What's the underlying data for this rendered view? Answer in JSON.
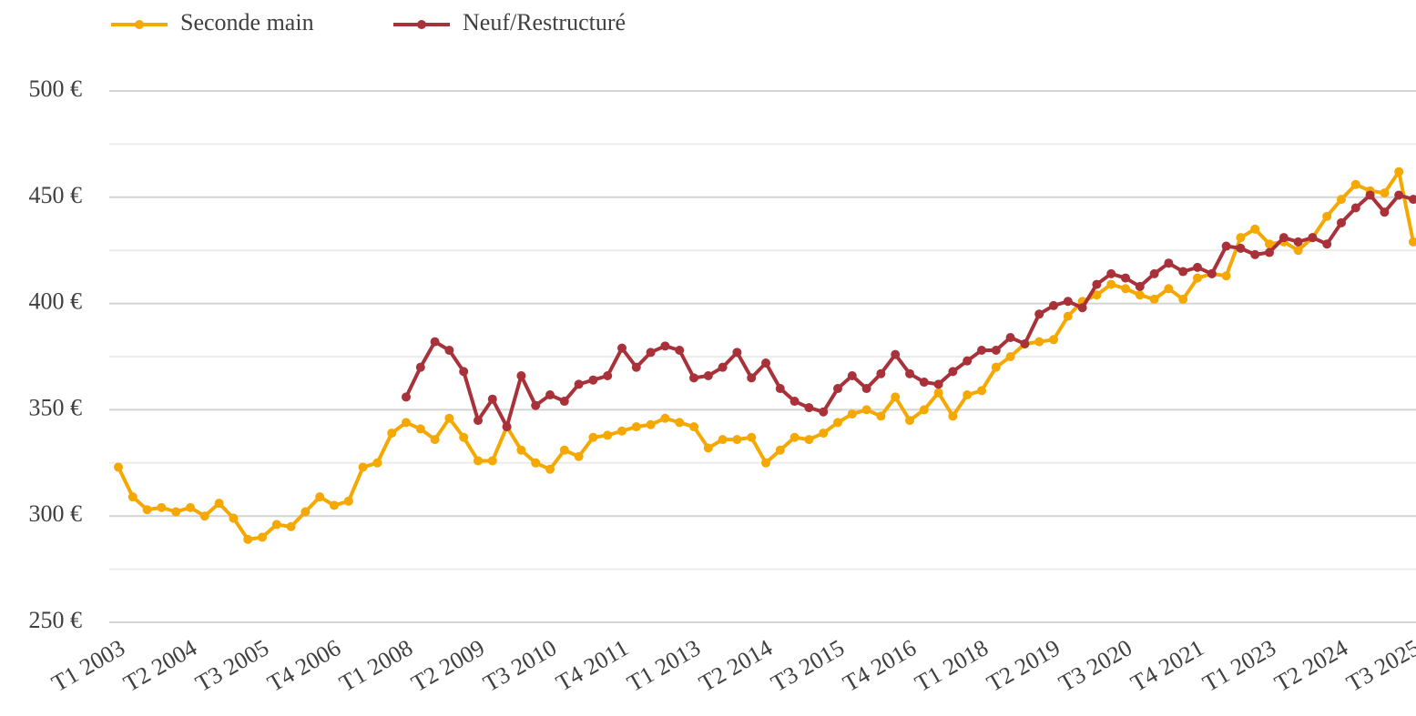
{
  "chart_data": {
    "type": "line",
    "categories": [
      "T1 2003",
      null,
      null,
      null,
      null,
      "T2 2004",
      null,
      null,
      null,
      null,
      "T3 2005",
      null,
      null,
      null,
      null,
      "T4 2006",
      null,
      null,
      null,
      null,
      "T1 2008",
      null,
      null,
      null,
      null,
      "T2 2009",
      null,
      null,
      null,
      null,
      "T3 2010",
      null,
      null,
      null,
      null,
      "T4 2011",
      null,
      null,
      null,
      null,
      "T1 2013",
      null,
      null,
      null,
      null,
      "T2 2014",
      null,
      null,
      null,
      null,
      "T3 2015",
      null,
      null,
      null,
      null,
      "T4 2016",
      null,
      null,
      null,
      null,
      "T1 2018",
      null,
      null,
      null,
      null,
      "T2 2019",
      null,
      null,
      null,
      null,
      "T3 2020",
      null,
      null,
      null,
      null,
      "T4 2021",
      null,
      null,
      null,
      null,
      "T1 2023",
      null,
      null,
      null,
      null,
      "T2 2024",
      null,
      null,
      null,
      null,
      "T3 2025"
    ],
    "series": [
      {
        "name": "Seconde main",
        "color": "#f5a800",
        "values": [
          323,
          309,
          303,
          304,
          302,
          304,
          300,
          306,
          299,
          289,
          290,
          296,
          295,
          302,
          309,
          305,
          307,
          323,
          325,
          339,
          344,
          341,
          336,
          346,
          337,
          326,
          326,
          342,
          331,
          325,
          322,
          331,
          328,
          337,
          338,
          340,
          342,
          343,
          346,
          344,
          342,
          332,
          336,
          336,
          337,
          325,
          331,
          337,
          336,
          339,
          344,
          348,
          350,
          347,
          356,
          345,
          350,
          358,
          347,
          357,
          359,
          370,
          375,
          381,
          382,
          383,
          394,
          401,
          404,
          409,
          407,
          404,
          402,
          407,
          402,
          412,
          414,
          413,
          431,
          435,
          428,
          429,
          425,
          431,
          441,
          449,
          456,
          453,
          452,
          462,
          429
        ]
      },
      {
        "name": "Neuf/Restructuré",
        "color": "#a8313a",
        "values": [
          null,
          null,
          null,
          null,
          null,
          null,
          null,
          null,
          null,
          null,
          null,
          null,
          null,
          null,
          null,
          null,
          null,
          null,
          null,
          null,
          356,
          370,
          382,
          378,
          368,
          345,
          355,
          342,
          366,
          352,
          357,
          354,
          362,
          364,
          366,
          379,
          370,
          377,
          380,
          378,
          365,
          366,
          370,
          377,
          365,
          372,
          360,
          354,
          351,
          349,
          360,
          366,
          360,
          367,
          376,
          367,
          363,
          362,
          368,
          373,
          378,
          378,
          384,
          381,
          395,
          399,
          401,
          398,
          409,
          414,
          412,
          408,
          414,
          419,
          415,
          417,
          414,
          427,
          426,
          423,
          424,
          431,
          429,
          431,
          428,
          438,
          445,
          451,
          443,
          451,
          449
        ]
      }
    ],
    "ylim": [
      250,
      500
    ],
    "yticks": [
      {
        "value": 250,
        "label": "250 €"
      },
      {
        "value": 300,
        "label": "300 €"
      },
      {
        "value": 350,
        "label": "350 €"
      },
      {
        "value": 400,
        "label": "400 €"
      },
      {
        "value": 450,
        "label": "450 €"
      },
      {
        "value": 500,
        "label": "500 €"
      }
    ],
    "minor_yticks": [
      275,
      325,
      375,
      425,
      475
    ],
    "grid": true,
    "legend": "top-left"
  }
}
